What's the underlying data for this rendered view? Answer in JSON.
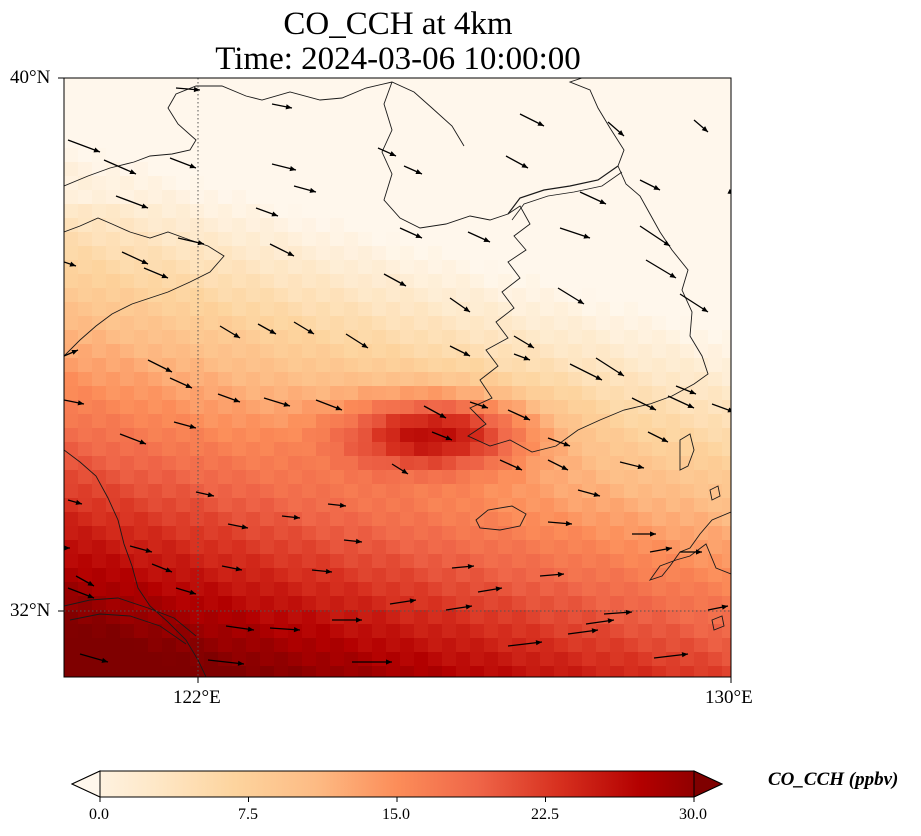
{
  "title": {
    "line1": "CO_CCH at 4km",
    "line2": "Time: 2024-03-06 10:00:00"
  },
  "axes": {
    "lat_labels": [
      "40°N",
      "32°N"
    ],
    "lon_labels": [
      "122°E",
      "130°E"
    ],
    "lon_range": [
      120,
      130
    ],
    "lat_range": [
      31,
      40
    ]
  },
  "colorbar": {
    "title": "CO_CCH (ppbv)",
    "min": 0.0,
    "max": 30.0,
    "tick_labels": [
      "0.0",
      "7.5",
      "15.0",
      "22.5",
      "30.0"
    ],
    "colormap": "OrRd",
    "extend": "both"
  },
  "colors": {
    "low": "#fff7ec",
    "mid": "#fc8d59",
    "high": "#7f0000"
  },
  "gridlines": {
    "lats": [
      32
    ],
    "lons": [
      122
    ],
    "style": "dotted"
  }
}
